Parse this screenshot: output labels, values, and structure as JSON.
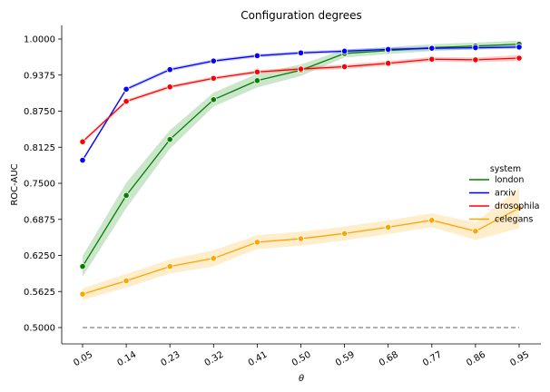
{
  "chart_data": {
    "type": "line",
    "title": "Configuration degrees",
    "xlabel": "θ",
    "ylabel": "ROC-AUC",
    "categories": [
      "0.05",
      "0.14",
      "0.23",
      "0.32",
      "0.41",
      "0.50",
      "0.59",
      "0.68",
      "0.77",
      "0.86",
      "0.95"
    ],
    "yticks": [
      "0.5000",
      "0.5625",
      "0.6250",
      "0.6875",
      "0.7500",
      "0.8125",
      "0.8750",
      "0.9375",
      "1.0000"
    ],
    "ylim": [
      0.5,
      1.0
    ],
    "legend_title": "system",
    "legend_position": "right",
    "grid": false,
    "baseline": {
      "value": 0.5,
      "color": "#808080",
      "style": "dashed"
    },
    "series": [
      {
        "name": "london",
        "color": "#008000",
        "values": [
          0.606,
          0.729,
          0.826,
          0.895,
          0.928,
          0.946,
          0.975,
          0.98,
          0.985,
          0.988,
          0.991
        ],
        "band": [
          0.018,
          0.022,
          0.016,
          0.012,
          0.012,
          0.01,
          0.007,
          0.006,
          0.006,
          0.006,
          0.006
        ]
      },
      {
        "name": "arxiv",
        "color": "#0000ff",
        "values": [
          0.79,
          0.913,
          0.947,
          0.962,
          0.971,
          0.976,
          0.979,
          0.982,
          0.984,
          0.985,
          0.986
        ],
        "band": [
          0.003,
          0.003,
          0.003,
          0.003,
          0.003,
          0.003,
          0.003,
          0.003,
          0.003,
          0.003,
          0.003
        ]
      },
      {
        "name": "drosophila",
        "color": "#ff0000",
        "values": [
          0.822,
          0.892,
          0.917,
          0.932,
          0.943,
          0.948,
          0.952,
          0.958,
          0.965,
          0.964,
          0.967
        ],
        "band": [
          0.003,
          0.003,
          0.003,
          0.003,
          0.003,
          0.003,
          0.004,
          0.004,
          0.004,
          0.004,
          0.005
        ]
      },
      {
        "name": "celegans",
        "color": "#ffa500",
        "values": [
          0.558,
          0.581,
          0.606,
          0.62,
          0.648,
          0.654,
          0.663,
          0.674,
          0.686,
          0.667,
          0.707
        ],
        "band": [
          0.01,
          0.012,
          0.012,
          0.014,
          0.012,
          0.012,
          0.012,
          0.012,
          0.012,
          0.015,
          0.035
        ]
      }
    ]
  }
}
